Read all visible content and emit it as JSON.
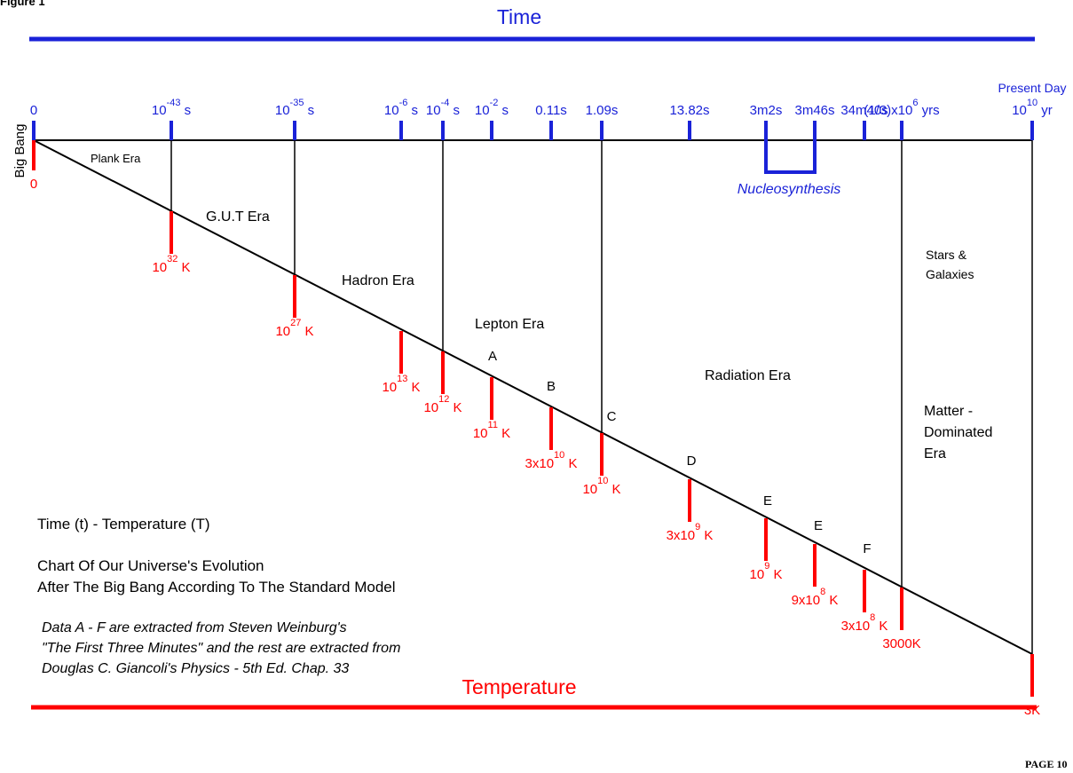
{
  "figure_label": "Figure 1",
  "axis_titles": {
    "time": "Time",
    "temperature": "Temperature"
  },
  "page_label": "PAGE 10",
  "colors": {
    "time": "#1a22d8",
    "temperature": "#ff0000",
    "line": "#000000"
  },
  "time_ticks": [
    {
      "base": "0",
      "exp": "",
      "unit": ""
    },
    {
      "base": "10",
      "exp": "-43",
      "unit": "s"
    },
    {
      "base": "10",
      "exp": "-35",
      "unit": "s"
    },
    {
      "base": "10",
      "exp": "-6",
      "unit": "s"
    },
    {
      "base": "10",
      "exp": "-4",
      "unit": "s"
    },
    {
      "base": "10",
      "exp": "-2",
      "unit": "s"
    },
    {
      "base": "0.11s",
      "exp": "",
      "unit": ""
    },
    {
      "base": "1.09s",
      "exp": "",
      "unit": ""
    },
    {
      "base": "13.82s",
      "exp": "",
      "unit": ""
    },
    {
      "base": "3m2s",
      "exp": "",
      "unit": ""
    },
    {
      "base": "3m46s",
      "exp": "",
      "unit": ""
    },
    {
      "base": "34m40s",
      "exp": "",
      "unit": ""
    },
    {
      "base": "(1/3)x10",
      "exp": "6",
      "unit": "yrs"
    },
    {
      "base": "10",
      "exp": "10",
      "unit": "yr",
      "top": "Present Day"
    }
  ],
  "temp_ticks": [
    {
      "base": "0",
      "exp": "",
      "unit": ""
    },
    {
      "base": "10",
      "exp": "32",
      "unit": "K"
    },
    {
      "base": "10",
      "exp": "27",
      "unit": "K"
    },
    {
      "base": "10",
      "exp": "13",
      "unit": "K"
    },
    {
      "base": "10",
      "exp": "12",
      "unit": "K"
    },
    {
      "base": "10",
      "exp": "11",
      "unit": "K"
    },
    {
      "base": "3x10",
      "exp": "10",
      "unit": "K"
    },
    {
      "base": "10",
      "exp": "10",
      "unit": "K"
    },
    {
      "base": "3x10",
      "exp": "9",
      "unit": "K"
    },
    {
      "base": "10",
      "exp": "9",
      "unit": "K"
    },
    {
      "base": "9x10",
      "exp": "8",
      "unit": "K"
    },
    {
      "base": "3x10",
      "exp": "8",
      "unit": "K"
    },
    {
      "base": "3000K",
      "exp": "",
      "unit": ""
    },
    {
      "base": "3K",
      "exp": "",
      "unit": ""
    }
  ],
  "big_bang_label": "Big Bang",
  "nucleosynthesis_label": "Nucleosynthesis",
  "point_labels": [
    "A",
    "B",
    "C",
    "D",
    "E",
    "E",
    "F"
  ],
  "eras": [
    "Plank Era",
    "G.U.T Era",
    "Hadron Era",
    "Lepton Era",
    "Radiation Era",
    "Stars &",
    "Galaxies",
    "Matter -",
    "Dominated",
    "Era"
  ],
  "caption": {
    "heading": "Time (t) - Temperature (T)",
    "line1": "Chart Of Our Universe's Evolution",
    "line2": "After The Big Bang According To The Standard Model",
    "source1": "Data A - F are extracted from Steven Weinburg's",
    "source2": "\"The First Three Minutes\" and the rest are extracted from",
    "source3": "Douglas C. Giancoli's Physics - 5th Ed. Chap. 33"
  }
}
